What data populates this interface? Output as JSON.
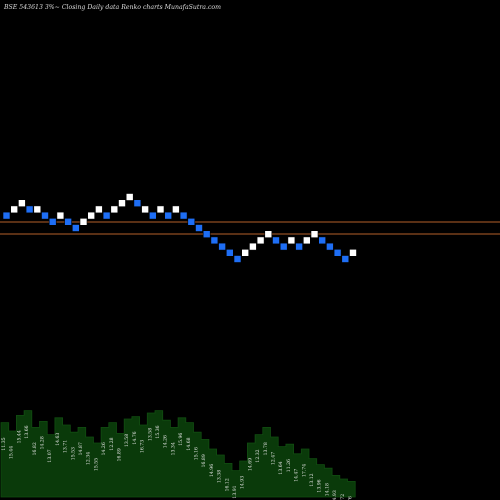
{
  "header": {
    "title": "BSE 543613 3%~ Closing Daily data Renko charts MunafaSutra.com"
  },
  "colors": {
    "up": "#ffffff",
    "down": "#1e6ef5",
    "resistance": "#b5602a",
    "volume_fill": "#0a3a0a",
    "volume_edge": "#114d11",
    "background": "#000000"
  },
  "chart_data": [
    {
      "type": "renko",
      "brick_colors": {
        "up": "white",
        "down": "blue"
      },
      "bricks": [
        {
          "level": 8,
          "dir": "down"
        },
        {
          "level": 9,
          "dir": "up"
        },
        {
          "level": 10,
          "dir": "up"
        },
        {
          "level": 9,
          "dir": "down"
        },
        {
          "level": 9,
          "dir": "up"
        },
        {
          "level": 8,
          "dir": "down"
        },
        {
          "level": 7,
          "dir": "down"
        },
        {
          "level": 8,
          "dir": "up"
        },
        {
          "level": 7,
          "dir": "down"
        },
        {
          "level": 6,
          "dir": "down"
        },
        {
          "level": 7,
          "dir": "up"
        },
        {
          "level": 8,
          "dir": "up"
        },
        {
          "level": 9,
          "dir": "up"
        },
        {
          "level": 8,
          "dir": "down"
        },
        {
          "level": 9,
          "dir": "up"
        },
        {
          "level": 10,
          "dir": "up"
        },
        {
          "level": 11,
          "dir": "up"
        },
        {
          "level": 10,
          "dir": "down"
        },
        {
          "level": 9,
          "dir": "up"
        },
        {
          "level": 8,
          "dir": "down"
        },
        {
          "level": 9,
          "dir": "up"
        },
        {
          "level": 8,
          "dir": "down"
        },
        {
          "level": 9,
          "dir": "up"
        },
        {
          "level": 8,
          "dir": "down"
        },
        {
          "level": 7,
          "dir": "down"
        },
        {
          "level": 6,
          "dir": "down"
        },
        {
          "level": 5,
          "dir": "down"
        },
        {
          "level": 4,
          "dir": "down"
        },
        {
          "level": 3,
          "dir": "down"
        },
        {
          "level": 2,
          "dir": "down"
        },
        {
          "level": 1,
          "dir": "down"
        },
        {
          "level": 2,
          "dir": "up"
        },
        {
          "level": 3,
          "dir": "up"
        },
        {
          "level": 4,
          "dir": "up"
        },
        {
          "level": 5,
          "dir": "up"
        },
        {
          "level": 4,
          "dir": "down"
        },
        {
          "level": 3,
          "dir": "down"
        },
        {
          "level": 4,
          "dir": "up"
        },
        {
          "level": 3,
          "dir": "down"
        },
        {
          "level": 4,
          "dir": "up"
        },
        {
          "level": 5,
          "dir": "up"
        },
        {
          "level": 4,
          "dir": "down"
        },
        {
          "level": 3,
          "dir": "down"
        },
        {
          "level": 2,
          "dir": "down"
        },
        {
          "level": 1,
          "dir": "down"
        },
        {
          "level": 2,
          "dir": "up"
        }
      ],
      "reference_levels": [
        8,
        6
      ]
    },
    {
      "type": "area",
      "series": [
        {
          "values": [
            62,
            55,
            68,
            72,
            58,
            63,
            52,
            66,
            60,
            54,
            58,
            50,
            45,
            58,
            62,
            53,
            65,
            67,
            60,
            70,
            72,
            64,
            58,
            66,
            62,
            54,
            48,
            40,
            35,
            28,
            22,
            30,
            45,
            52,
            58,
            50,
            42,
            44,
            36,
            40,
            32,
            27,
            24,
            18,
            15,
            13
          ]
        }
      ],
      "data_labels": [
        "11.35",
        "15.44",
        "15.44",
        "13.66",
        "16.82",
        "14.28",
        "13.07",
        "14.63",
        "13.71",
        "15.53",
        "14.87",
        "12.34",
        "15.55",
        "14.26",
        "12.28",
        "16.89",
        "13.58",
        "14.76",
        "16.73",
        "13.58",
        "15.36",
        "14.26",
        "13.34",
        "15.96",
        "14.68",
        "15.16",
        "16.89",
        "14.96",
        "13.38",
        "16.12",
        "13.91",
        "14.93",
        "14.69",
        "12.32",
        "13.78",
        "12.47",
        "13.64",
        "11.26",
        "14.47",
        "17.74",
        "13.12",
        "13.96",
        "14.18",
        "14.93",
        "15.72",
        "15.76"
      ]
    }
  ]
}
